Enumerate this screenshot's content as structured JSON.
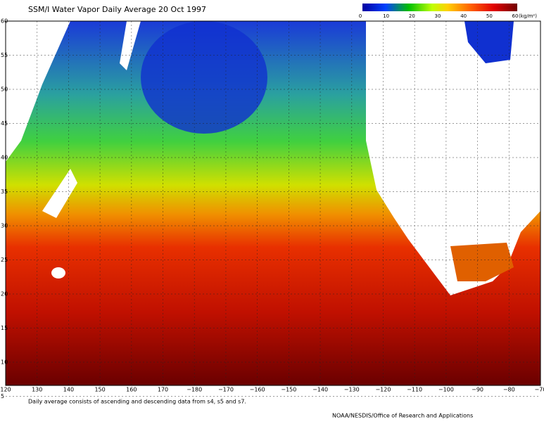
{
  "header": {
    "title": "SSM/I Water Vapor  Daily Average  20 Oct 1997"
  },
  "colorbar": {
    "ticks": [
      0,
      10,
      20,
      30,
      40,
      50,
      60
    ],
    "unit": "(kg/m²)"
  },
  "axes": {
    "latitude_labels": [
      60,
      55,
      50,
      45,
      40,
      35,
      30,
      25,
      20,
      15,
      10,
      5
    ],
    "longitude_labels": [
      "120",
      "130",
      "140",
      "150",
      "160",
      "170",
      "−180",
      "−170",
      "−160",
      "−150",
      "−140",
      "−130",
      "−120",
      "−110",
      "−100",
      "−90",
      "−80",
      "−70"
    ]
  },
  "footer": {
    "note": "Daily average consists of ascending and descending data from s4, s5 and s7.",
    "credit": "NOAA/NESDIS/Office of Research and Applications"
  }
}
